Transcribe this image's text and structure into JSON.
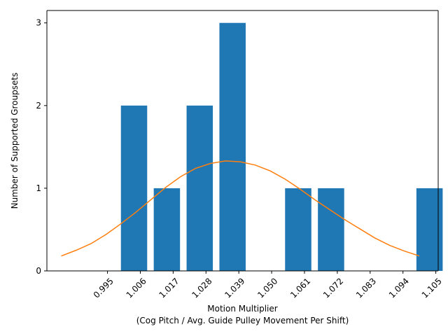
{
  "chart_data": {
    "type": "bar",
    "xlabel_line1": "Motion Multiplier",
    "xlabel_line2": "(Cog Pitch / Avg. Guide Pulley Movement Per Shift)",
    "ylabel": "Number of Supported Groupsets",
    "x_ticks": [
      "0.995",
      "1.006",
      "1.017",
      "1.028",
      "1.039",
      "1.050",
      "1.061",
      "1.072",
      "1.083",
      "1.094",
      "1.105"
    ],
    "x_tick_values": [
      0.995,
      1.006,
      1.017,
      1.028,
      1.039,
      1.05,
      1.061,
      1.072,
      1.083,
      1.094,
      1.105
    ],
    "y_ticks": [
      "0",
      "1",
      "2",
      "3"
    ],
    "y_tick_values": [
      0,
      1,
      2,
      3
    ],
    "xlim": [
      0.9747,
      1.1058
    ],
    "ylim": [
      0,
      3.15
    ],
    "bars": [
      {
        "x_start": 0.9995,
        "x_end": 1.0083,
        "value": 2
      },
      {
        "x_start": 1.0105,
        "x_end": 1.0193,
        "value": 1
      },
      {
        "x_start": 1.0215,
        "x_end": 1.0303,
        "value": 2
      },
      {
        "x_start": 1.0325,
        "x_end": 1.0413,
        "value": 3
      },
      {
        "x_start": 1.0545,
        "x_end": 1.0633,
        "value": 1
      },
      {
        "x_start": 1.0655,
        "x_end": 1.0743,
        "value": 1
      },
      {
        "x_start": 1.0985,
        "x_end": 1.1073,
        "value": 1
      }
    ],
    "curve": {
      "x": [
        0.9795,
        0.9845,
        0.9895,
        0.9945,
        0.9995,
        1.0045,
        1.0095,
        1.0145,
        1.0195,
        1.0245,
        1.0295,
        1.0345,
        1.0395,
        1.0445,
        1.0495,
        1.0545,
        1.0595,
        1.0645,
        1.0695,
        1.0745,
        1.0795,
        1.0845,
        1.0895,
        1.0945,
        1.0995
      ],
      "y": [
        0.18,
        0.25,
        0.33,
        0.44,
        0.57,
        0.71,
        0.86,
        1.01,
        1.14,
        1.24,
        1.3,
        1.33,
        1.32,
        1.28,
        1.21,
        1.11,
        0.99,
        0.86,
        0.74,
        0.62,
        0.51,
        0.4,
        0.31,
        0.24,
        0.18
      ]
    },
    "colors": {
      "bar": "#1f77b4",
      "curve": "#ff7f0e",
      "axis": "#000000"
    },
    "grid": false
  }
}
